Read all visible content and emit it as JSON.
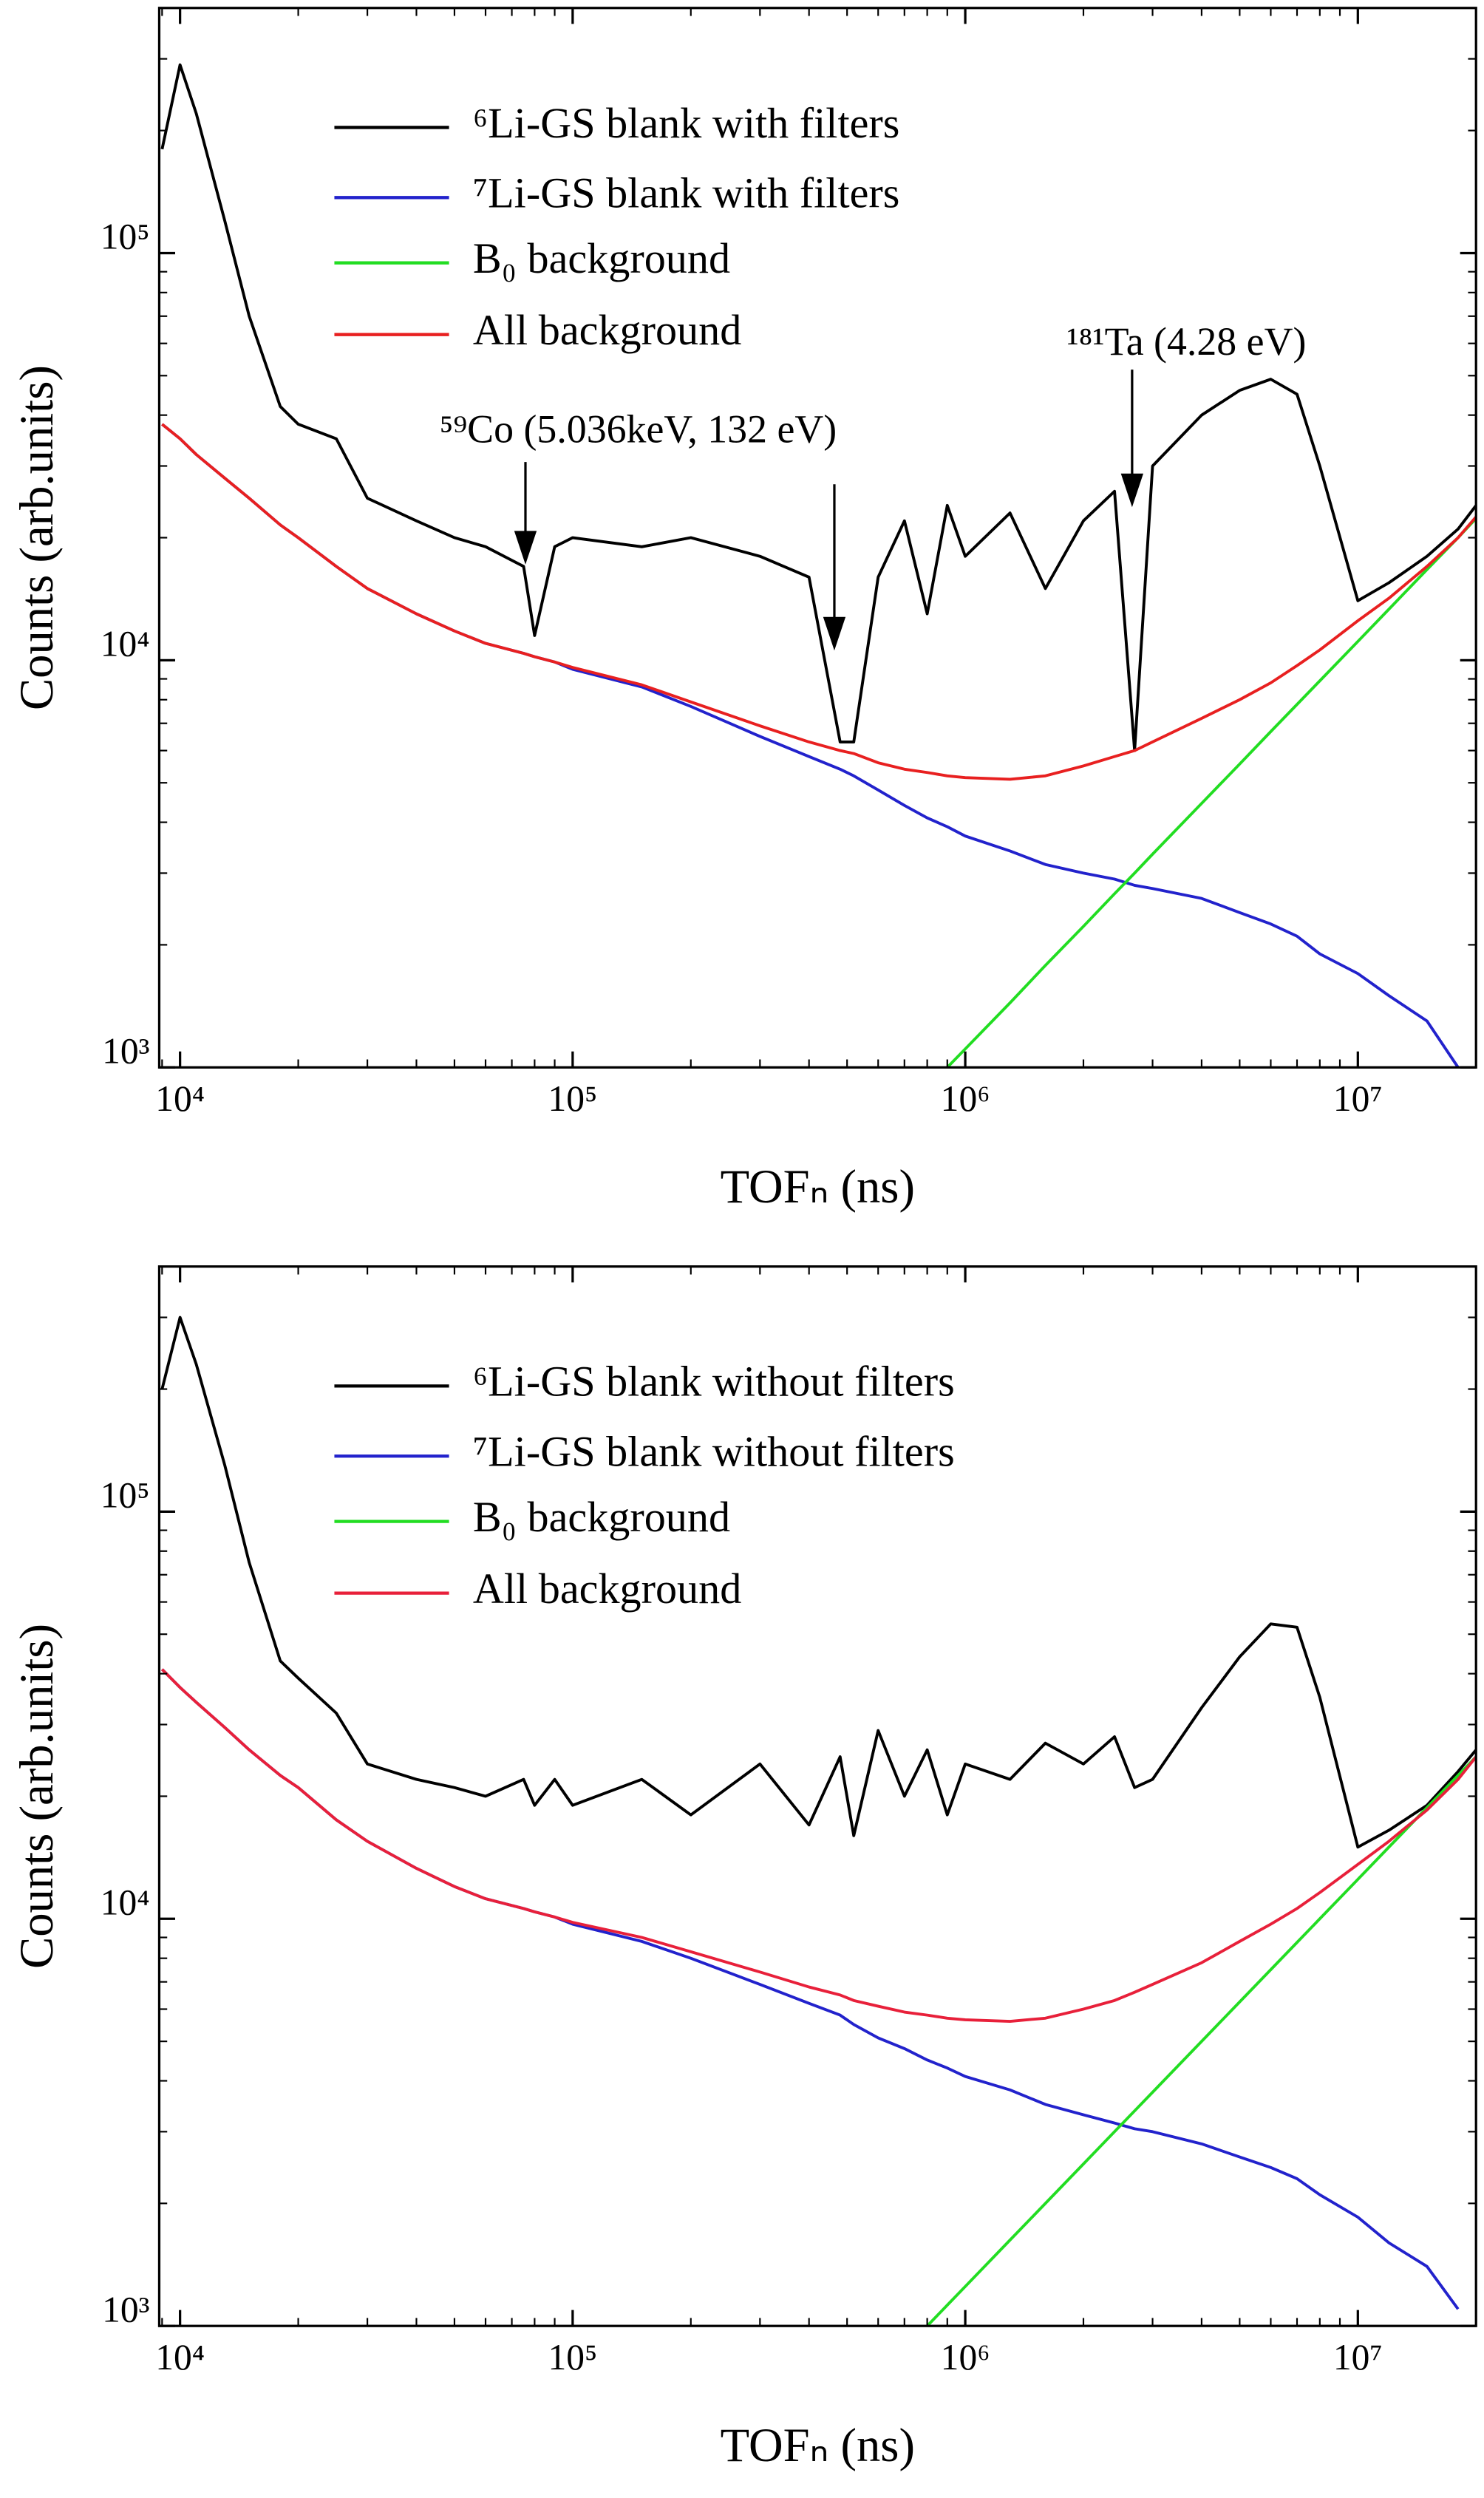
{
  "chart_data": [
    {
      "type": "line",
      "x_label": "TOFₙ (ns)",
      "y_label": "Counts (arb.units)",
      "xscale": "log",
      "yscale": "log",
      "xlim": [
        8850,
        20000000
      ],
      "ylim": [
        1000,
        400000
      ],
      "xticks": [
        {
          "value": 10000,
          "label": "10⁴"
        },
        {
          "value": 100000,
          "label": "10⁵"
        },
        {
          "value": 1000000,
          "label": "10⁶"
        },
        {
          "value": 10000000,
          "label": "10⁷"
        }
      ],
      "yticks": [
        {
          "value": 1000,
          "label": "10³"
        },
        {
          "value": 10000,
          "label": "10⁴"
        },
        {
          "value": 100000,
          "label": "10⁵"
        }
      ],
      "legend": "upper left",
      "annotations": [
        "⁵⁹Co (5.036keV, 132 eV)",
        "¹⁸¹Ta (4.28 eV)"
      ],
      "x": [
        9000,
        10000,
        11000,
        13000,
        15000,
        18000,
        20000,
        25000,
        30000,
        40000,
        50000,
        60000,
        75000,
        80000,
        90000,
        100000,
        150000,
        200000,
        300000,
        400000,
        480000,
        520000,
        600000,
        700000,
        800000,
        900000,
        1000000,
        1300000,
        1600000,
        2000000,
        2400000,
        2700000,
        3000000,
        4000000,
        5000000,
        6000000,
        7000000,
        8000000,
        10000000,
        12000000,
        15000000,
        18000000,
        20000000
      ],
      "series": [
        {
          "name": "⁶Li-GS blank with filters",
          "color": "#000000",
          "values": [
            180000,
            290000,
            220000,
            120000,
            70000,
            42000,
            38000,
            35000,
            25000,
            22000,
            20000,
            19000,
            17000,
            11500,
            19000,
            20000,
            19000,
            20000,
            18000,
            16000,
            6300,
            6300,
            16000,
            22000,
            13000,
            24000,
            18000,
            23000,
            15000,
            22000,
            26000,
            6000,
            30000,
            40000,
            46000,
            49000,
            45000,
            30000,
            14000,
            15500,
            18000,
            21000,
            24000
          ]
        },
        {
          "name": "⁷Li-GS blank with filters",
          "color": "#2222cc",
          "values": [
            38000,
            35000,
            32000,
            28000,
            25000,
            21500,
            20000,
            17000,
            15000,
            13000,
            11800,
            11000,
            10400,
            10200,
            9900,
            9500,
            8600,
            7700,
            6500,
            5800,
            5400,
            5200,
            4800,
            4400,
            4100,
            3900,
            3700,
            3400,
            3150,
            3000,
            2900,
            2800,
            2750,
            2600,
            2400,
            2250,
            2100,
            1900,
            1700,
            1500,
            1300,
            1000,
            null
          ]
        },
        {
          "name": "B₀ background",
          "color": "#22dd22",
          "values": [
            null,
            null,
            null,
            null,
            null,
            null,
            null,
            null,
            null,
            null,
            null,
            null,
            null,
            null,
            null,
            null,
            null,
            null,
            null,
            null,
            null,
            null,
            null,
            null,
            null,
            1000,
            1110,
            1440,
            1780,
            2220,
            2670,
            3000,
            3340,
            4450,
            5560,
            6680,
            7790,
            8900,
            11120,
            13350,
            16700,
            20000,
            22300
          ]
        },
        {
          "name": "All background",
          "color": "#e82020",
          "values": [
            38000,
            35000,
            32000,
            28000,
            25000,
            21500,
            20000,
            17000,
            15000,
            13000,
            11800,
            11000,
            10400,
            10200,
            9900,
            9600,
            8700,
            7900,
            6900,
            6300,
            6000,
            5900,
            5600,
            5400,
            5300,
            5200,
            5150,
            5100,
            5200,
            5500,
            5800,
            6000,
            6300,
            7200,
            8000,
            8800,
            9700,
            10600,
            12500,
            14200,
            17000,
            20000,
            22500
          ]
        }
      ]
    },
    {
      "type": "line",
      "x_label": "TOFₙ (ns)",
      "y_label": "Counts (arb.units)",
      "xscale": "log",
      "yscale": "log",
      "xlim": [
        8850,
        20000000
      ],
      "ylim": [
        1000,
        400000
      ],
      "xticks": [
        {
          "value": 10000,
          "label": "10⁴"
        },
        {
          "value": 100000,
          "label": "10⁵"
        },
        {
          "value": 1000000,
          "label": "10⁶"
        },
        {
          "value": 10000000,
          "label": "10⁷"
        }
      ],
      "yticks": [
        {
          "value": 1000,
          "label": "10³"
        },
        {
          "value": 10000,
          "label": "10⁴"
        },
        {
          "value": 100000,
          "label": "10⁵"
        }
      ],
      "legend": "upper left",
      "x": [
        9000,
        10000,
        11000,
        13000,
        15000,
        18000,
        20000,
        25000,
        30000,
        40000,
        50000,
        60000,
        75000,
        80000,
        90000,
        100000,
        150000,
        200000,
        300000,
        400000,
        480000,
        520000,
        600000,
        700000,
        800000,
        900000,
        1000000,
        1300000,
        1600000,
        2000000,
        2400000,
        2700000,
        3000000,
        4000000,
        5000000,
        6000000,
        7000000,
        8000000,
        10000000,
        12000000,
        15000000,
        18000000,
        20000000
      ],
      "series": [
        {
          "name": "⁶Li-GS blank without filters",
          "color": "#000000",
          "values": [
            200000,
            300000,
            230000,
            130000,
            75000,
            43000,
            39000,
            32000,
            24000,
            22000,
            21000,
            20000,
            22000,
            19000,
            22000,
            19000,
            22000,
            18000,
            24000,
            17000,
            25000,
            16000,
            29000,
            20000,
            26000,
            18000,
            24000,
            22000,
            27000,
            24000,
            28000,
            21000,
            22000,
            33000,
            44000,
            53000,
            52000,
            35000,
            15000,
            16500,
            19000,
            23000,
            26000
          ]
        },
        {
          "name": "⁷Li-GS blank without filters",
          "color": "#2222cc",
          "values": [
            41000,
            37000,
            34000,
            29500,
            26000,
            22500,
            21000,
            17500,
            15500,
            13300,
            12000,
            11200,
            10600,
            10400,
            10100,
            9700,
            8800,
            8000,
            6900,
            6200,
            5800,
            5500,
            5100,
            4800,
            4500,
            4300,
            4100,
            3800,
            3500,
            3300,
            3150,
            3050,
            3000,
            2800,
            2600,
            2450,
            2300,
            2100,
            1850,
            1600,
            1400,
            1100,
            null
          ]
        },
        {
          "name": "B₀ background",
          "color": "#22dd22",
          "values": [
            null,
            null,
            null,
            null,
            null,
            null,
            null,
            null,
            null,
            null,
            null,
            null,
            null,
            null,
            null,
            null,
            null,
            null,
            null,
            null,
            null,
            null,
            null,
            null,
            1000,
            1125,
            1250,
            1625,
            2000,
            2500,
            3000,
            3375,
            3750,
            5000,
            6250,
            7500,
            8750,
            10000,
            12500,
            15000,
            18750,
            22500,
            25000
          ]
        },
        {
          "name": "All background",
          "color": "#e8203a",
          "values": [
            41000,
            37000,
            34000,
            29500,
            26000,
            22500,
            21000,
            17500,
            15500,
            13300,
            12000,
            11200,
            10600,
            10400,
            10100,
            9800,
            9000,
            8300,
            7400,
            6800,
            6500,
            6300,
            6100,
            5900,
            5800,
            5700,
            5650,
            5600,
            5700,
            6000,
            6300,
            6600,
            6900,
            7800,
            8800,
            9700,
            10600,
            11600,
            13600,
            15500,
            18500,
            22000,
            25000
          ]
        }
      ]
    }
  ]
}
